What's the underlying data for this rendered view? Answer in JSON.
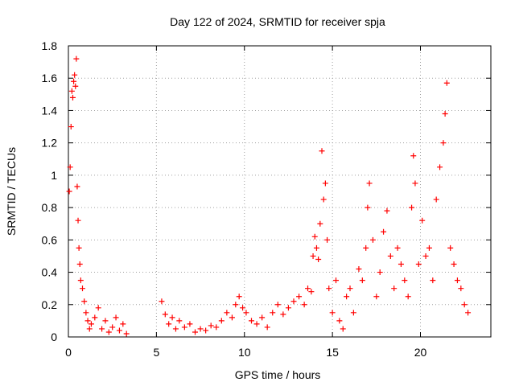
{
  "chart_data": {
    "type": "scatter",
    "title": "Day 122 of 2024, SRMTID for receiver spja",
    "xlabel": "GPS time / hours",
    "ylabel": "SRMTID / TECUs",
    "xlim": [
      0,
      24
    ],
    "ylim": [
      0,
      1.8
    ],
    "xticks": [
      0,
      5,
      10,
      15,
      20
    ],
    "xtick_labels": [
      "0",
      "5",
      "10",
      "15",
      "20"
    ],
    "yticks": [
      0,
      0.2,
      0.4,
      0.6,
      0.8,
      1.0,
      1.2,
      1.4,
      1.6,
      1.8
    ],
    "ytick_labels": [
      "0",
      "0.2",
      "0.4",
      "0.6",
      "0.8",
      "1",
      "1.2",
      "1.4",
      "1.6",
      "1.8"
    ],
    "grid": true,
    "marker": "+",
    "color": "#ff0000",
    "series": [
      {
        "name": "SRMTID",
        "x": [
          0.05,
          0.1,
          0.15,
          0.2,
          0.25,
          0.3,
          0.35,
          0.4,
          0.45,
          0.5,
          0.55,
          0.6,
          0.65,
          0.7,
          0.8,
          0.9,
          1.0,
          1.1,
          1.2,
          1.3,
          1.5,
          1.7,
          1.9,
          2.1,
          2.3,
          2.5,
          2.7,
          2.9,
          3.1,
          3.3,
          5.3,
          5.5,
          5.7,
          5.9,
          6.1,
          6.3,
          6.6,
          6.9,
          7.2,
          7.5,
          7.8,
          8.1,
          8.4,
          8.7,
          9.0,
          9.3,
          9.5,
          9.7,
          9.9,
          10.1,
          10.4,
          10.7,
          11.0,
          11.3,
          11.6,
          11.9,
          12.2,
          12.5,
          12.8,
          13.1,
          13.4,
          13.6,
          13.8,
          13.9,
          14.0,
          14.1,
          14.2,
          14.3,
          14.4,
          14.5,
          14.6,
          14.7,
          14.8,
          15.0,
          15.2,
          15.4,
          15.6,
          15.8,
          16.0,
          16.2,
          16.5,
          16.7,
          16.9,
          17.0,
          17.1,
          17.3,
          17.5,
          17.7,
          17.9,
          18.1,
          18.3,
          18.5,
          18.7,
          18.9,
          19.1,
          19.3,
          19.5,
          19.6,
          19.7,
          19.9,
          20.1,
          20.3,
          20.5,
          20.7,
          20.9,
          21.1,
          21.3,
          21.4,
          21.5,
          21.7,
          21.9,
          22.1,
          22.3,
          22.5,
          22.7
        ],
        "y": [
          0.9,
          1.05,
          1.3,
          1.52,
          1.48,
          1.58,
          1.62,
          1.55,
          1.72,
          0.93,
          0.72,
          0.55,
          0.45,
          0.35,
          0.3,
          0.22,
          0.15,
          0.1,
          0.05,
          0.08,
          0.12,
          0.18,
          0.05,
          0.1,
          0.03,
          0.06,
          0.12,
          0.04,
          0.08,
          0.02,
          0.22,
          0.14,
          0.08,
          0.12,
          0.05,
          0.1,
          0.06,
          0.08,
          0.03,
          0.05,
          0.04,
          0.07,
          0.06,
          0.1,
          0.15,
          0.12,
          0.2,
          0.25,
          0.18,
          0.15,
          0.1,
          0.08,
          0.12,
          0.06,
          0.15,
          0.2,
          0.14,
          0.18,
          0.22,
          0.25,
          0.2,
          0.3,
          0.28,
          0.5,
          0.62,
          0.55,
          0.48,
          0.7,
          1.15,
          0.85,
          0.95,
          0.6,
          0.3,
          0.15,
          0.35,
          0.1,
          0.05,
          0.25,
          0.3,
          0.15,
          0.42,
          0.35,
          0.55,
          0.8,
          0.95,
          0.6,
          0.25,
          0.4,
          0.65,
          0.78,
          0.5,
          0.3,
          0.55,
          0.45,
          0.35,
          0.25,
          0.8,
          1.12,
          0.95,
          0.45,
          0.72,
          0.5,
          0.55,
          0.35,
          0.85,
          1.05,
          1.2,
          1.38,
          1.57,
          0.55,
          0.45,
          0.35,
          0.3,
          0.2,
          0.15
        ]
      }
    ]
  }
}
